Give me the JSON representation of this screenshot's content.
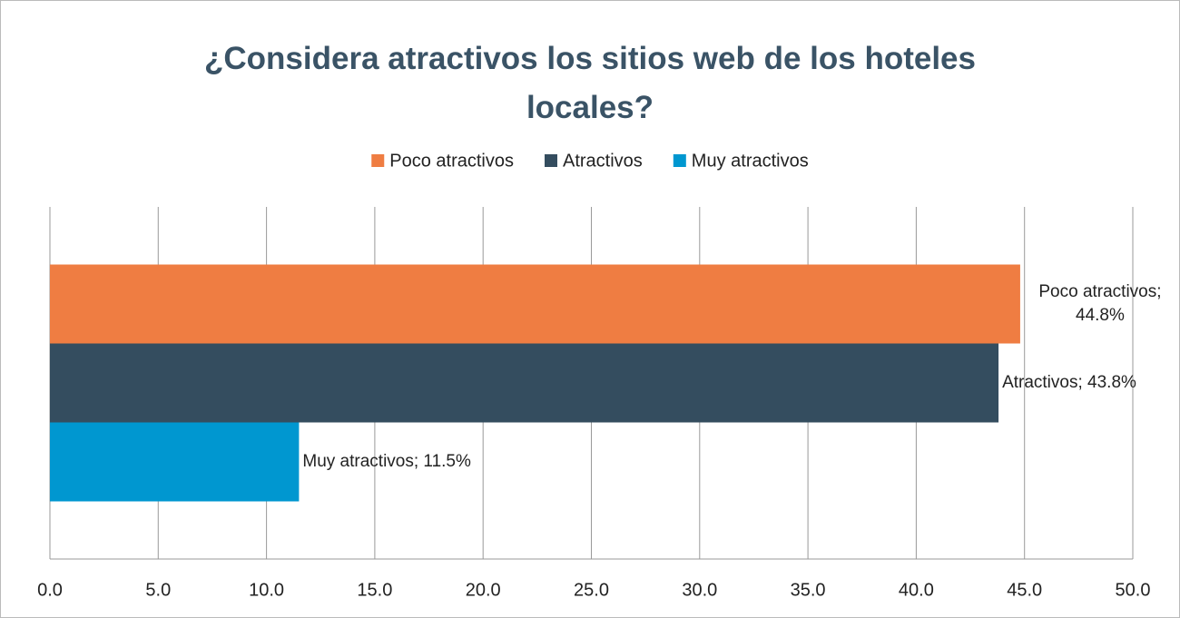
{
  "chart_data": {
    "type": "barh",
    "title": "¿Considera atractivos los sitios web de los hoteles locales?",
    "categories": [
      null
    ],
    "series": [
      {
        "name": "Poco atractivos",
        "color": "#ef7d42",
        "values": [
          44.8
        ],
        "value_labels": [
          "Poco atractivos; 44.8%"
        ]
      },
      {
        "name": "Atractivos",
        "color": "#344d5f",
        "values": [
          43.8
        ],
        "value_labels": [
          "Atractivos; 43.8%"
        ]
      },
      {
        "name": "Muy atractivos",
        "color": "#0097d0",
        "values": [
          11.5
        ],
        "value_labels": [
          "Muy atractivos; 11.5%"
        ]
      }
    ],
    "xlim": [
      0,
      50
    ],
    "xticks": [
      {
        "value": 0,
        "label": "0.0"
      },
      {
        "value": 5,
        "label": "5.0"
      },
      {
        "value": 10,
        "label": "10.0"
      },
      {
        "value": 15,
        "label": "15.0"
      },
      {
        "value": 20,
        "label": "20.0"
      },
      {
        "value": 25,
        "label": "25.0"
      },
      {
        "value": 30,
        "label": "30.0"
      },
      {
        "value": 35,
        "label": "35.0"
      },
      {
        "value": 40,
        "label": "40.0"
      },
      {
        "value": 45,
        "label": "45.0"
      },
      {
        "value": 50,
        "label": "50.0"
      }
    ],
    "grid": true,
    "legend": "top"
  }
}
